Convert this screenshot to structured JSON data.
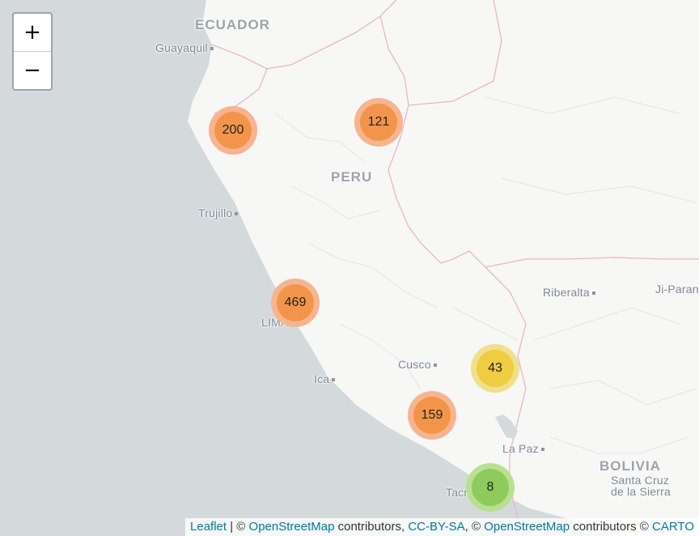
{
  "controls": {
    "zoom_in": "+",
    "zoom_out": "−"
  },
  "places": {
    "ecuador": "ECUADOR",
    "guayaquil": "Guayaquil",
    "peru": "PERU",
    "trujillo": "Trujillo",
    "lima": "LIMA",
    "ica": "Ica",
    "cusco": "Cusco",
    "tacna": "Tacna",
    "la_paz": "La Paz",
    "bolivia": "BOLIVIA",
    "santa_cruz_1": "Santa Cruz",
    "santa_cruz_2": "de la Sierra",
    "riberalta": "Riberalta",
    "ji_parana": "Ji-Paraná"
  },
  "clusters": [
    {
      "count": "200",
      "level": "medium"
    },
    {
      "count": "121",
      "level": "medium"
    },
    {
      "count": "469",
      "level": "medium"
    },
    {
      "count": "43",
      "level": "small"
    },
    {
      "count": "159",
      "level": "medium"
    },
    {
      "count": "8",
      "level": "tiny"
    }
  ],
  "colors": {
    "medium_outer": "#f6b58f",
    "medium_inner": "#f2954b",
    "small_outer": "#f0e08a",
    "small_inner": "#f0cc42",
    "tiny_outer": "#b9e08f",
    "tiny_inner": "#8dcc5c",
    "land": "#f7f7f6",
    "sea": "#d4dadc"
  },
  "attribution": {
    "leaflet": "Leaflet",
    "sep1": " | © ",
    "osm1": "OpenStreetMap",
    "contrib1": " contributors, ",
    "ccbysa": "CC-BY-SA",
    "sep2": ", © ",
    "osm2": "OpenStreetMap",
    "contrib2": " contributors © ",
    "carto": "CARTO"
  }
}
